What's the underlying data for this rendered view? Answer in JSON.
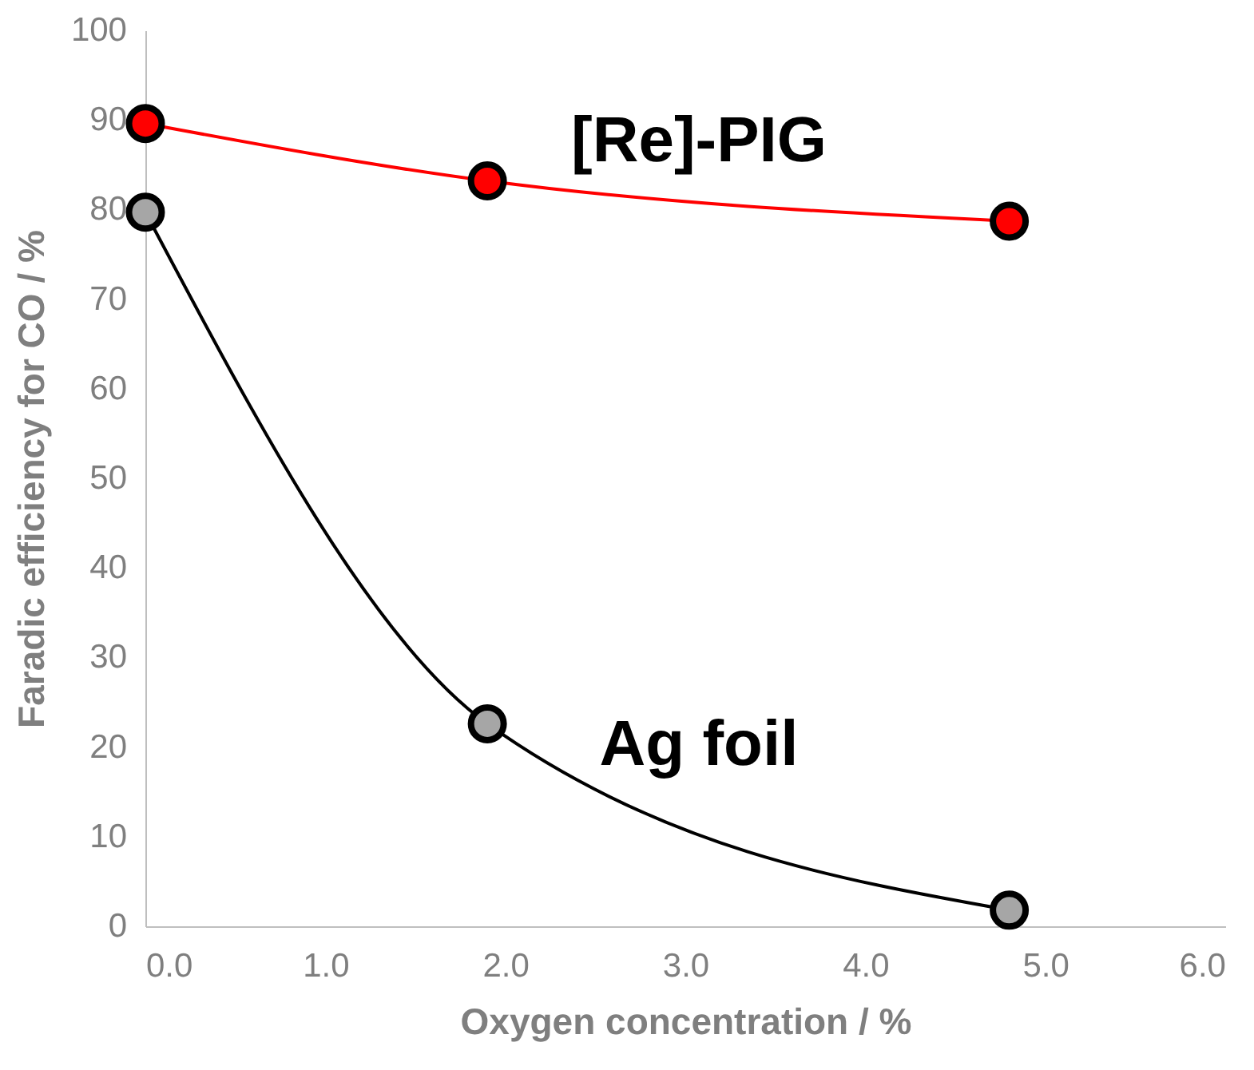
{
  "chart_data": {
    "type": "line",
    "xlabel": "Oxygen concentration / %",
    "ylabel": "Faradic efficiency for CO / %",
    "xlim": [
      0,
      6
    ],
    "xticks": [
      {
        "value": 0,
        "label": "0.0"
      },
      {
        "value": 1,
        "label": "1.0"
      },
      {
        "value": 2,
        "label": "2.0"
      },
      {
        "value": 3,
        "label": "3.0"
      },
      {
        "value": 4,
        "label": "4.0"
      },
      {
        "value": 5,
        "label": "5.0"
      },
      {
        "value": 6,
        "label": "6.0"
      }
    ],
    "ylim": [
      0,
      100
    ],
    "yticks": [
      0,
      10,
      20,
      30,
      40,
      50,
      60,
      70,
      80,
      90,
      100
    ],
    "grid": false,
    "marker": "circle",
    "line_style": "solid",
    "series": [
      {
        "name": "[Re]-PIG",
        "color": "#ff0000",
        "x": [
          0.0,
          1.9,
          4.8
        ],
        "values": [
          89.6,
          83.2,
          78.7
        ]
      },
      {
        "name": "Ag foil",
        "color": "#a6a6a6",
        "x": [
          0.0,
          1.9,
          4.8
        ],
        "values": [
          79.7,
          22.6,
          1.8
        ]
      }
    ]
  }
}
